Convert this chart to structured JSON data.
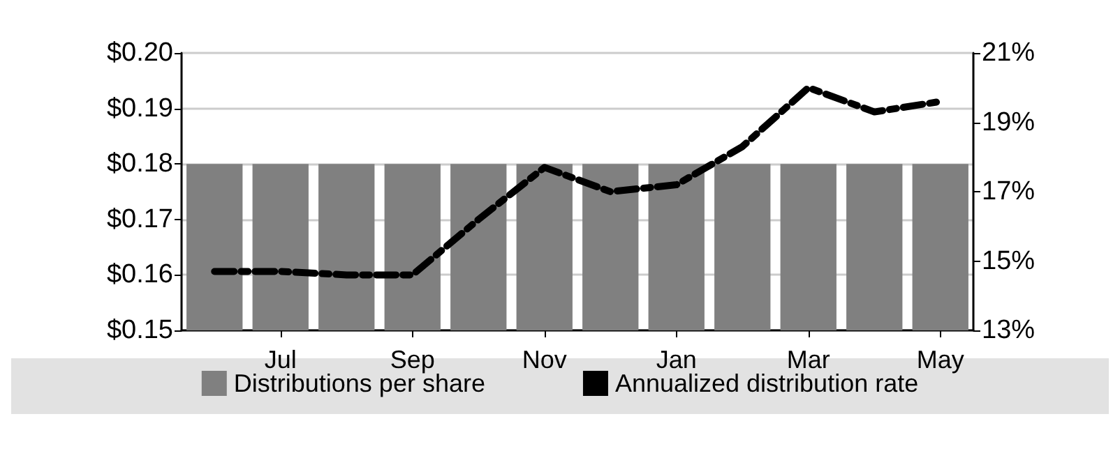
{
  "chart_data": {
    "type": "bar",
    "categories": [
      null,
      "Jul",
      null,
      "Sep",
      null,
      "Nov",
      null,
      "Jan",
      null,
      "Mar",
      null,
      "May"
    ],
    "series": [
      {
        "name": "Distributions per share",
        "color": "#808080",
        "values": [
          0.18,
          0.18,
          0.18,
          0.18,
          0.18,
          0.18,
          0.18,
          0.18,
          0.18,
          0.18,
          0.18,
          0.18
        ]
      },
      {
        "name": "Annualized distribution rate",
        "type": "line",
        "axis": "y2",
        "color": "#000000",
        "line_style": "dashed",
        "marker": "none",
        "values": [
          14.7,
          14.7,
          14.6,
          14.6,
          16.2,
          17.7,
          17.0,
          17.2,
          18.3,
          20.0,
          19.3,
          19.6
        ]
      }
    ],
    "ylim": [
      0.15,
      0.2
    ],
    "yticks": [
      {
        "value": 0.15,
        "label": "$0.15"
      },
      {
        "value": 0.16,
        "label": "$0.16"
      },
      {
        "value": 0.17,
        "label": "$0.17"
      },
      {
        "value": 0.18,
        "label": "$0.18"
      },
      {
        "value": 0.19,
        "label": "$0.19"
      },
      {
        "value": 0.2,
        "label": "$0.20"
      }
    ],
    "y2lim": [
      13,
      21
    ],
    "y2ticks": [
      {
        "value": 13,
        "label": "13%"
      },
      {
        "value": 15,
        "label": "15%"
      },
      {
        "value": 17,
        "label": "17%"
      },
      {
        "value": 19,
        "label": "19%"
      },
      {
        "value": 21,
        "label": "21%"
      }
    ],
    "grid": "y",
    "legend": "bottom"
  }
}
